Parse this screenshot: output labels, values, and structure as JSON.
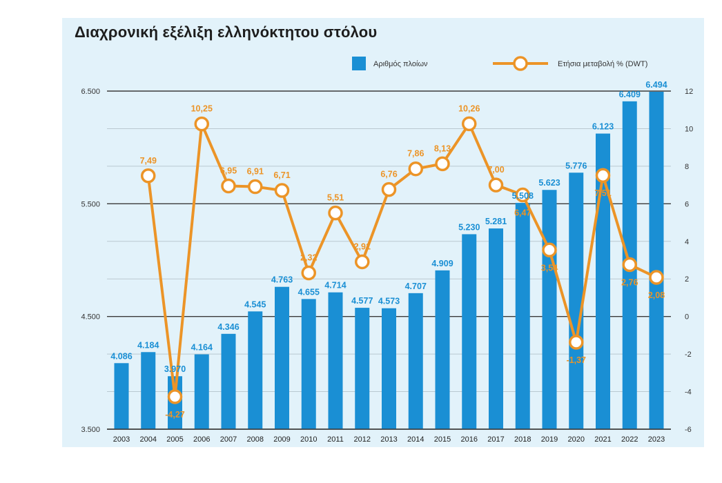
{
  "chart_data": {
    "type": "bar+line",
    "title": "Διαχρονική εξέλιξη ελληνόκτητου στόλου",
    "categories": [
      "2003",
      "2004",
      "2005",
      "2006",
      "2007",
      "2008",
      "2009",
      "2010",
      "2011",
      "2012",
      "2013",
      "2014",
      "2015",
      "2016",
      "2017",
      "2018",
      "2019",
      "2020",
      "2021",
      "2022",
      "2023"
    ],
    "series": [
      {
        "name": "Αριθμός πλοίων",
        "type": "bar",
        "axis": "left",
        "values": [
          4086,
          4184,
          3970,
          4164,
          4346,
          4545,
          4763,
          4655,
          4714,
          4577,
          4573,
          4707,
          4909,
          5230,
          5281,
          5508,
          5623,
          5776,
          6123,
          6409,
          6494
        ],
        "labels": [
          "4.086",
          "4.184",
          "3.970",
          "4.164",
          "4.346",
          "4.545",
          "4.763",
          "4.655",
          "4.714",
          "4.577",
          "4.573",
          "4.707",
          "4.909",
          "5.230",
          "5.281",
          "5.508",
          "5.623",
          "5.776",
          "6.123",
          "6.409",
          "6.494"
        ],
        "color": "#1a8fd4"
      },
      {
        "name": "Ετήσια μεταβολή % (DWT)",
        "type": "line",
        "axis": "right",
        "values": [
          null,
          7.49,
          -4.27,
          10.25,
          6.95,
          6.91,
          6.71,
          2.32,
          5.51,
          2.91,
          6.76,
          7.86,
          8.13,
          10.26,
          7.0,
          6.47,
          3.54,
          -1.37,
          7.51,
          2.76,
          2.08
        ],
        "labels": [
          "",
          "7,49",
          "-4,27",
          "10,25",
          "6,95",
          "6,91",
          "6,71",
          "2,32",
          "5,51",
          "2,91",
          "6,76",
          "7,86",
          "8,13",
          "10,26",
          "7,00",
          "6,47",
          "3,54",
          "-1,37",
          "7,51",
          "2,76",
          "2,08"
        ],
        "color": "#ec9427"
      }
    ],
    "y_left": {
      "min": 3500,
      "max": 6500,
      "ticks": [
        3500,
        4500,
        5500,
        6500
      ],
      "tick_labels": [
        "3.500",
        "4.500",
        "5.500",
        "6.500"
      ]
    },
    "y_right": {
      "min": -6,
      "max": 12,
      "ticks": [
        -6,
        -4,
        -2,
        0,
        2,
        4,
        6,
        8,
        10,
        12
      ],
      "tick_labels": [
        "-6",
        "-4",
        "-2",
        "0",
        "2",
        "4",
        "6",
        "8",
        "10",
        "12"
      ]
    },
    "grid": true,
    "legend_position": "top-right"
  },
  "colors": {
    "bar": "#1a8fd4",
    "line": "#ec9427",
    "background": "#e2f2fa",
    "grid": "#3a3a3a"
  }
}
